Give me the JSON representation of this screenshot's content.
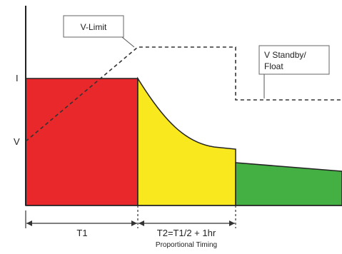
{
  "labels": {
    "current_axis": "I",
    "voltage_axis": "V",
    "v_limit": "V-Limit",
    "v_standby_line1": "V Standby/",
    "v_standby_line2": "Float",
    "t1": "T1",
    "t2": "T2=T1/2 + 1hr",
    "proportional_timing": "Proportional Timing"
  },
  "colors": {
    "phase_1": "#e8282b",
    "phase_2": "#f9e81d",
    "phase_3": "#44b044",
    "voltage_line": "#333333",
    "axis": "#222222"
  }
}
